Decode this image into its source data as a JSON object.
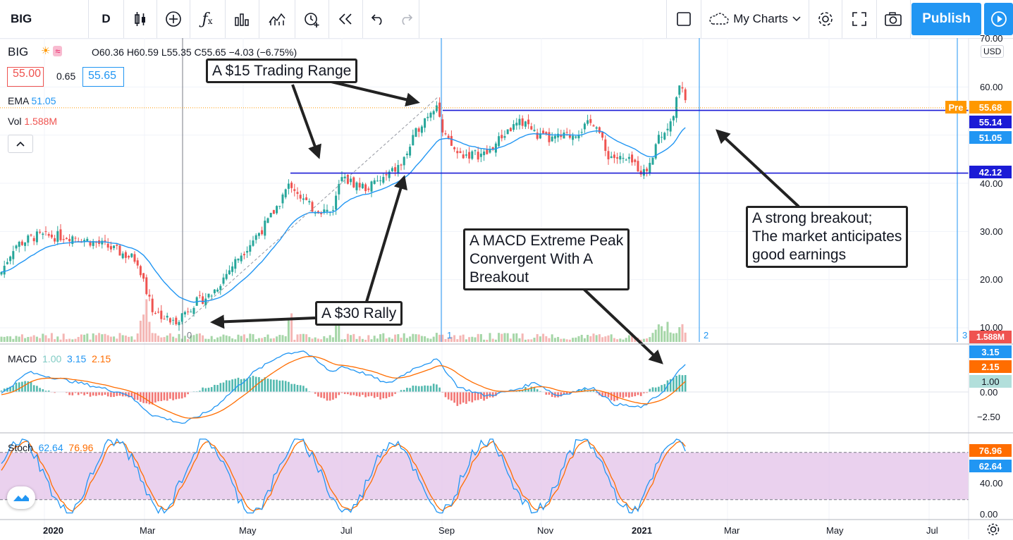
{
  "toolbar": {
    "symbol": "BIG",
    "interval": "D",
    "layout_name": "My Charts",
    "publish_label": "Publish",
    "icons": [
      "candles-icon",
      "add-compare-icon",
      "indicators-icon",
      "templates-icon",
      "alert-icon",
      "replay-icon",
      "undo-icon",
      "redo-icon",
      "square-layout-icon",
      "cloud-icon",
      "settings-icon",
      "fullscreen-icon",
      "camera-icon",
      "play-icon"
    ]
  },
  "legend": {
    "symbol": "BIG",
    "ohlc": "O60.36 H60.59 L55.35 C55.65 −4.03 (−6.75%)",
    "bid": "55.00",
    "spread": "0.65",
    "ask": "55.65",
    "ema_label": "EMA",
    "ema_value": "51.05",
    "vol_label": "Vol",
    "vol_value": "1.588M"
  },
  "macd_legend": {
    "label": "MACD",
    "hist": "1.00",
    "macd": "3.15",
    "signal": "2.15"
  },
  "stoch_legend": {
    "label": "Stoch",
    "k": "62.64",
    "d": "76.96"
  },
  "price_axis": {
    "currency": "USD",
    "ticks": [
      "70.00",
      "60.00",
      "40.00",
      "30.00",
      "20.00",
      "10.00"
    ],
    "tags": {
      "pre_label": "Pre",
      "pre": "55.68",
      "level_high": "55.14",
      "ema": "51.05",
      "level_low": "42.12",
      "volume": "1.588M"
    }
  },
  "macd_axis": {
    "ticks": [
      "0.00",
      "−2.50"
    ],
    "tags": {
      "macd": "3.15",
      "signal": "2.15",
      "hist": "1.00"
    }
  },
  "stoch_axis": {
    "ticks": [
      "40.00",
      "0.00"
    ],
    "tags": {
      "d": "76.96",
      "k": "62.64"
    }
  },
  "time_axis": [
    "2020",
    "Mar",
    "May",
    "Jul",
    "Sep",
    "Nov",
    "2021",
    "Mar",
    "May",
    "Jul"
  ],
  "markers": [
    "0",
    "1",
    "2",
    "3"
  ],
  "annotations": {
    "trading_range": "A $15 Trading Range",
    "rally": "A $30 Rally",
    "macd_peak": [
      "A MACD Extreme Peak",
      "Convergent With A",
      "Breakout"
    ],
    "breakout": [
      "A strong breakout;",
      "The market anticipates",
      "good earnings"
    ]
  },
  "colors": {
    "up": "#26a69a",
    "down": "#ef5350",
    "ema": "#2196f3",
    "level": "#1b1bd6",
    "signal": "#ff6d00",
    "stoch_band": "#e1bee7",
    "accent": "#2196f3"
  },
  "chart_data": {
    "type": "candlestick",
    "symbol": "BIG",
    "period": "Dec 2019 – Feb 2021",
    "monthly_close_approx": [
      {
        "x": "2019-12",
        "close": 21
      },
      {
        "x": "2020-01",
        "close": 29
      },
      {
        "x": "2020-02",
        "close": 25
      },
      {
        "x": "2020-03",
        "close": 11
      },
      {
        "x": "2020-04",
        "close": 17
      },
      {
        "x": "2020-05",
        "close": 32
      },
      {
        "x": "2020-06",
        "close": 36
      },
      {
        "x": "2020-07",
        "close": 40
      },
      {
        "x": "2020-08",
        "close": 55
      },
      {
        "x": "2020-09",
        "close": 46
      },
      {
        "x": "2020-10",
        "close": 46
      },
      {
        "x": "2020-11",
        "close": 53
      },
      {
        "x": "2020-12",
        "close": 43
      },
      {
        "x": "2021-01",
        "close": 52
      },
      {
        "x": "2021-02",
        "close": 55.65
      }
    ],
    "horizontal_levels": [
      55.14,
      42.12
    ],
    "ylim": [
      8,
      72
    ],
    "macd_range": [
      -3.2,
      4
    ],
    "stoch_bands": [
      20,
      80
    ]
  }
}
